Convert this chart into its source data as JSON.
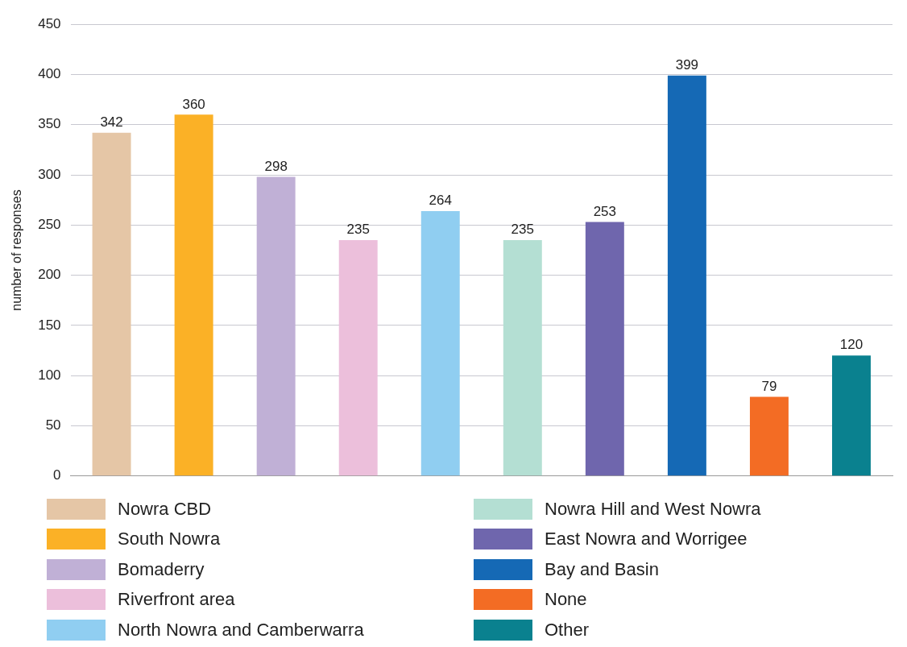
{
  "chart_data": {
    "type": "bar",
    "ylabel": "number of responses",
    "categories": [
      null,
      null,
      null,
      null,
      null,
      null,
      null,
      null,
      null,
      null
    ],
    "series": [
      {
        "name": "Nowra CBD",
        "color": "#e5c6a6",
        "values": [
          342,
          null,
          null,
          null,
          null,
          null,
          null,
          null,
          null,
          null
        ]
      },
      {
        "name": "South Nowra",
        "color": "#fbb126",
        "values": [
          null,
          360,
          null,
          null,
          null,
          null,
          null,
          null,
          null,
          null
        ]
      },
      {
        "name": "Bomaderry",
        "color": "#c0b0d6",
        "values": [
          null,
          null,
          298,
          null,
          null,
          null,
          null,
          null,
          null,
          null
        ]
      },
      {
        "name": "Riverfront area",
        "color": "#ecbfdb",
        "values": [
          null,
          null,
          null,
          235,
          null,
          null,
          null,
          null,
          null,
          null
        ]
      },
      {
        "name": "North Nowra and Camberwarra",
        "color": "#90cef1",
        "values": [
          null,
          null,
          null,
          null,
          264,
          null,
          null,
          null,
          null,
          null
        ]
      },
      {
        "name": "Nowra Hill and West Nowra",
        "color": "#b4dfd3",
        "values": [
          null,
          null,
          null,
          null,
          null,
          235,
          null,
          null,
          null,
          null
        ]
      },
      {
        "name": "East Nowra and Worrigee",
        "color": "#6f66ad",
        "values": [
          null,
          null,
          null,
          null,
          null,
          null,
          253,
          null,
          null,
          null
        ]
      },
      {
        "name": "Bay and Basin",
        "color": "#1569b5",
        "values": [
          null,
          null,
          null,
          null,
          null,
          null,
          null,
          399,
          null,
          null
        ]
      },
      {
        "name": "None",
        "color": "#f36c24",
        "values": [
          null,
          null,
          null,
          null,
          null,
          null,
          null,
          null,
          79,
          null
        ]
      },
      {
        "name": "Other",
        "color": "#0a818f",
        "values": [
          null,
          null,
          null,
          null,
          null,
          null,
          null,
          null,
          null,
          120
        ]
      }
    ],
    "ylim": [
      0,
      450
    ],
    "yticks": [
      0,
      50,
      100,
      150,
      200,
      250,
      300,
      350,
      400,
      450
    ],
    "grid": "y",
    "legend": "bottom",
    "tick_labels": "y",
    "data_labels": true
  }
}
